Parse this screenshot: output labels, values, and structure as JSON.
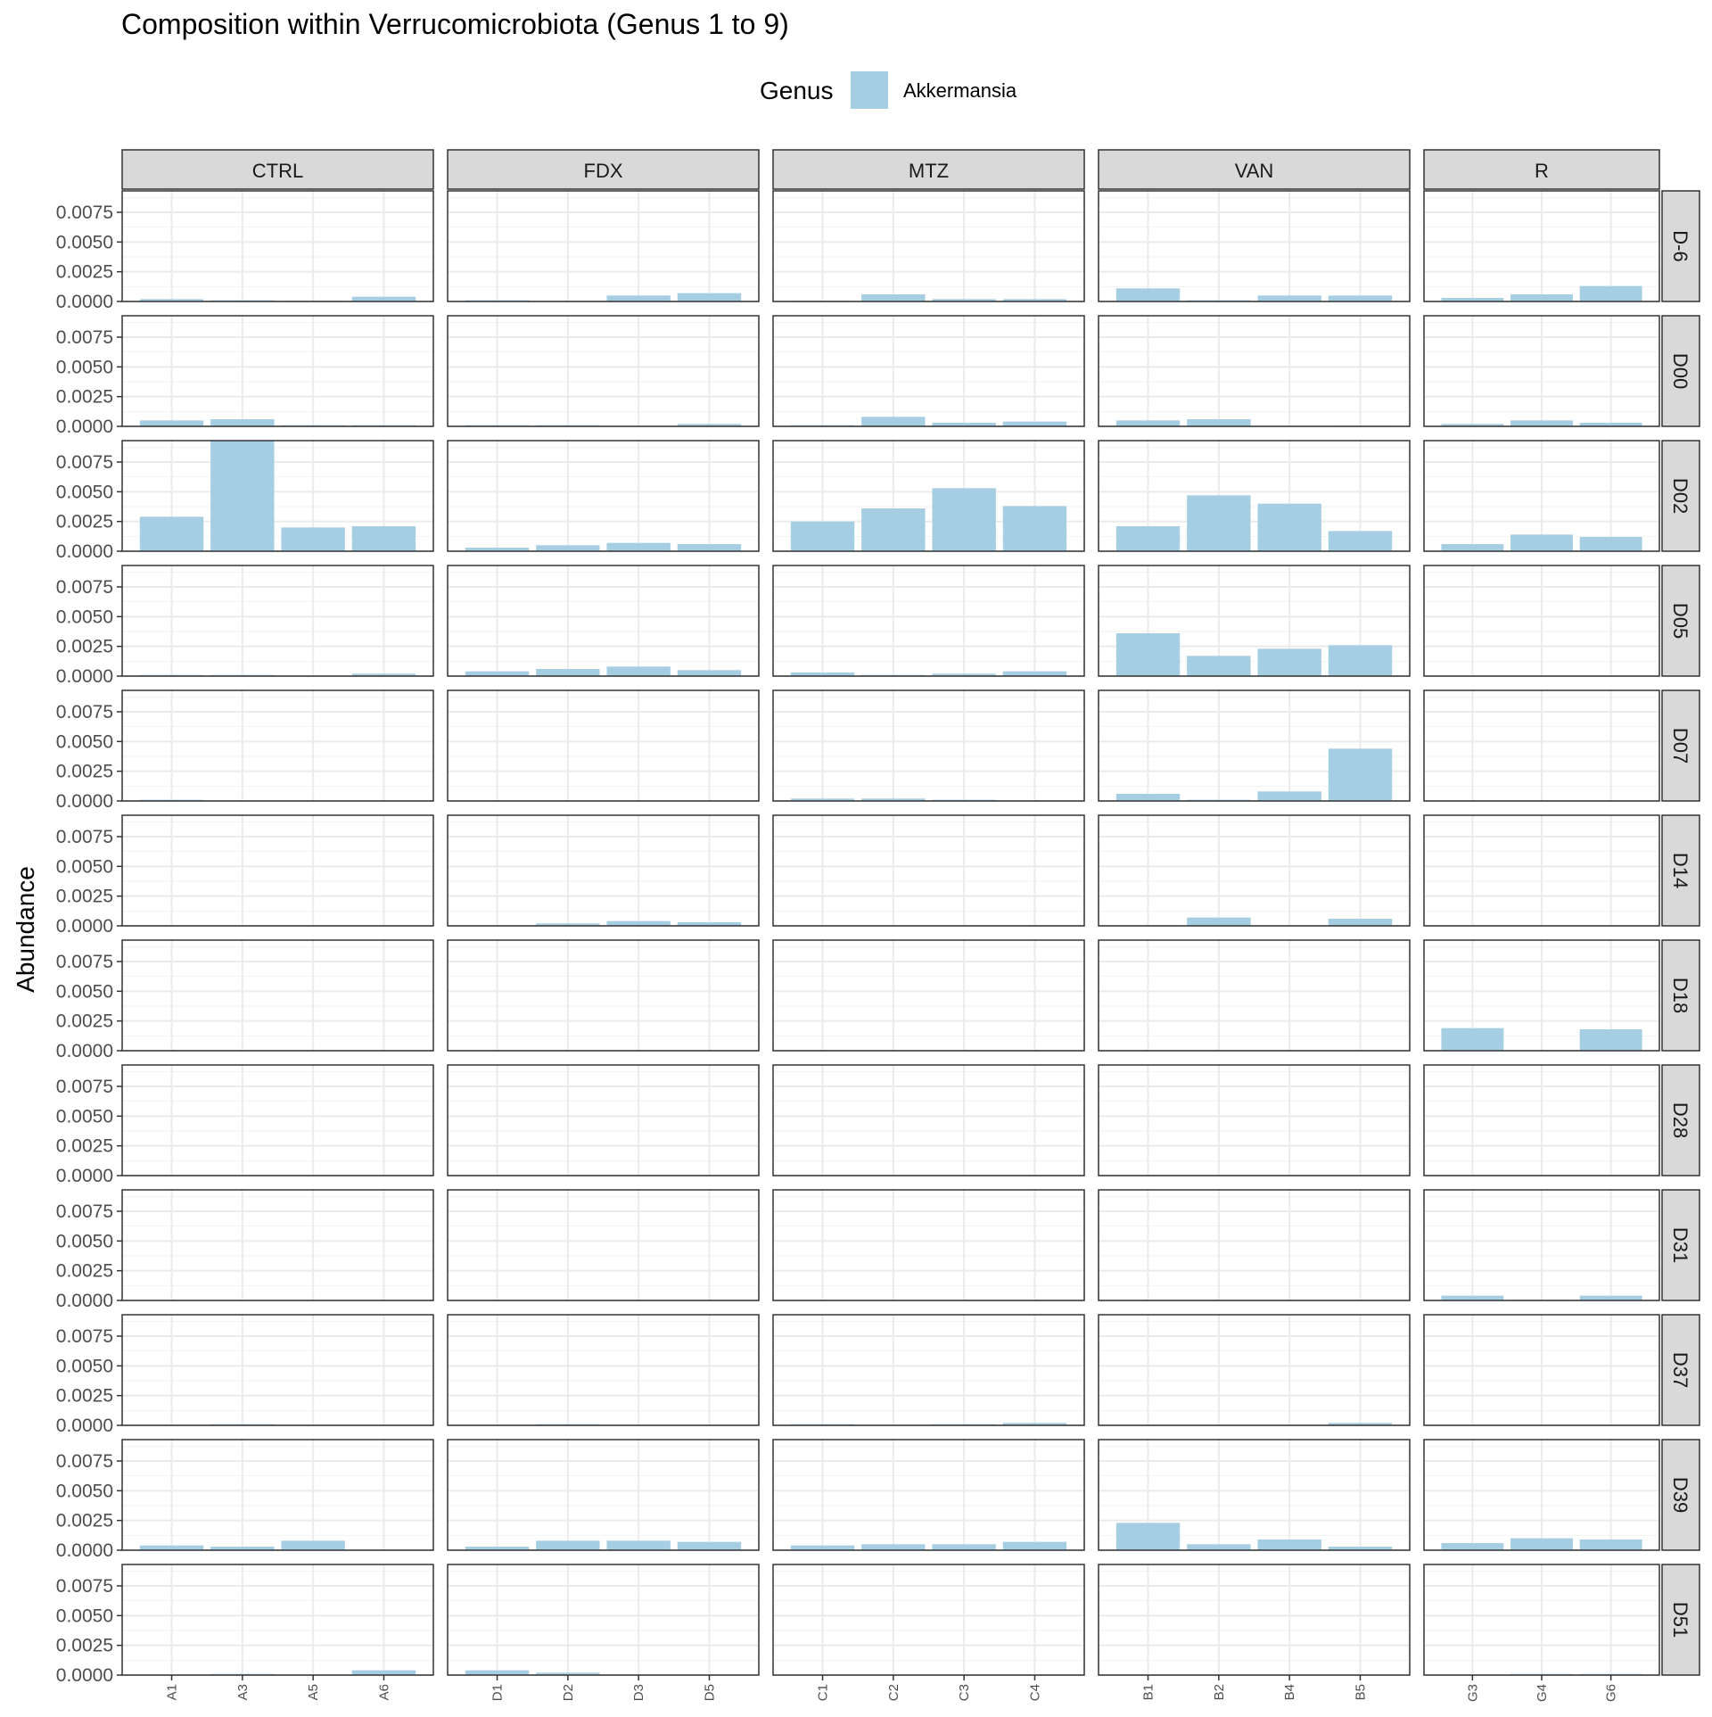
{
  "chart_data": {
    "type": "bar",
    "title": "Composition within Verrucomicrobiota (Genus 1 to 9)",
    "xlabel": "",
    "ylabel": "Abundance",
    "ylim": [
      0,
      0.0093
    ],
    "y_ticks": [
      "0.0000",
      "0.0025",
      "0.0050",
      "0.0075"
    ],
    "y_tick_values": [
      0,
      0.0025,
      0.005,
      0.0075
    ],
    "grid": true,
    "legend": {
      "title": "Genus",
      "placement": "top",
      "entries": [
        {
          "name": "Akkermansia",
          "color": "#a6cee3"
        }
      ]
    },
    "series_color": "#a6cee3",
    "columns": [
      {
        "label": "CTRL",
        "samples": [
          "A1",
          "A3",
          "A5",
          "A6"
        ]
      },
      {
        "label": "FDX",
        "samples": [
          "D1",
          "D2",
          "D3",
          "D5"
        ]
      },
      {
        "label": "MTZ",
        "samples": [
          "C1",
          "C2",
          "C3",
          "C4"
        ]
      },
      {
        "label": "VAN",
        "samples": [
          "B1",
          "B2",
          "B4",
          "B5"
        ]
      },
      {
        "label": "R",
        "samples": [
          "G3",
          "G4",
          "G6"
        ]
      }
    ],
    "rows": [
      "D-6",
      "D00",
      "D02",
      "D05",
      "D07",
      "D14",
      "D18",
      "D28",
      "D31",
      "D37",
      "D39",
      "D51"
    ],
    "values": [
      [
        [
          0.0002,
          0.0001,
          5e-05,
          0.0004
        ],
        [
          0.0001,
          0,
          0.0005,
          0.0007
        ],
        [
          5e-05,
          0.0006,
          0.0002,
          0.0002
        ],
        [
          0.0011,
          0.0001,
          0.0005,
          0.0005
        ],
        [
          0.0003,
          0.0006,
          0.0013
        ]
      ],
      [
        [
          0.0005,
          0.0006,
          0.0001,
          0.0001
        ],
        [
          0.0001,
          0.0001,
          0,
          0.0002
        ],
        [
          0.0001,
          0.0008,
          0.0003,
          0.0004
        ],
        [
          0.0005,
          0.0006,
          0,
          5e-05
        ],
        [
          0.0002,
          0.0005,
          0.0003
        ]
      ],
      [
        [
          0.0029,
          0.0093,
          0.002,
          0.0021
        ],
        [
          0.0003,
          0.0005,
          0.0007,
          0.0006
        ],
        [
          0.0025,
          0.0036,
          0.0053,
          0.0038
        ],
        [
          0.0021,
          0.0047,
          0.004,
          0.0017
        ],
        [
          0.0006,
          0.0014,
          0.0012
        ]
      ],
      [
        [
          0.0001,
          0.0001,
          0,
          0.0002
        ],
        [
          0.0004,
          0.0006,
          0.0008,
          0.0005
        ],
        [
          0.0003,
          0.0001,
          0.0002,
          0.0004
        ],
        [
          0.0036,
          0.0017,
          0.0023,
          0.0026
        ],
        [
          0,
          0,
          0
        ]
      ],
      [
        [
          0.0001,
          0,
          0,
          0
        ],
        [
          0,
          0,
          0,
          0
        ],
        [
          0.0002,
          0.0002,
          0.0001,
          0
        ],
        [
          0.0006,
          0.0001,
          0.0008,
          0.0044
        ],
        [
          0,
          0,
          0
        ]
      ],
      [
        [
          0,
          0,
          0,
          0
        ],
        [
          0,
          0.0002,
          0.0004,
          0.0003
        ],
        [
          0,
          0,
          0,
          0
        ],
        [
          5e-05,
          0.0007,
          0,
          0.0006
        ],
        [
          0,
          0,
          0
        ]
      ],
      [
        [
          0,
          0,
          0,
          0
        ],
        [
          0,
          0,
          0,
          0
        ],
        [
          0,
          0,
          0,
          0
        ],
        [
          0,
          0,
          0,
          0
        ],
        [
          0.0019,
          0,
          0.0018
        ]
      ],
      [
        [
          0,
          0,
          0,
          0
        ],
        [
          0,
          0,
          0,
          0
        ],
        [
          0,
          0,
          0,
          0
        ],
        [
          0,
          0,
          0,
          0
        ],
        [
          0,
          0,
          0
        ]
      ],
      [
        [
          0,
          0,
          0,
          0
        ],
        [
          0,
          0,
          0,
          0
        ],
        [
          0,
          0,
          0,
          0
        ],
        [
          0,
          0,
          0,
          0
        ],
        [
          0.0004,
          5e-05,
          0.0004
        ]
      ],
      [
        [
          0,
          0.0001,
          0,
          0
        ],
        [
          0,
          0.0001,
          0,
          0
        ],
        [
          0.0001,
          0,
          0.0001,
          0.0002
        ],
        [
          0,
          0,
          0,
          0.0002
        ],
        [
          0,
          0,
          0
        ]
      ],
      [
        [
          0.0004,
          0.0003,
          0.0008,
          0
        ],
        [
          0.0003,
          0.0008,
          0.0008,
          0.0007
        ],
        [
          0.0004,
          0.0005,
          0.0005,
          0.0007
        ],
        [
          0.0023,
          0.0005,
          0.0009,
          0.0003
        ],
        [
          0.0006,
          0.001,
          0.0009
        ]
      ],
      [
        [
          0,
          0.0001,
          0,
          0.0004
        ],
        [
          0.0004,
          0.0002,
          0,
          0
        ],
        [
          0,
          0,
          0,
          0
        ],
        [
          0,
          0,
          0,
          0
        ],
        [
          0,
          0.0001,
          0.0001
        ]
      ]
    ]
  }
}
